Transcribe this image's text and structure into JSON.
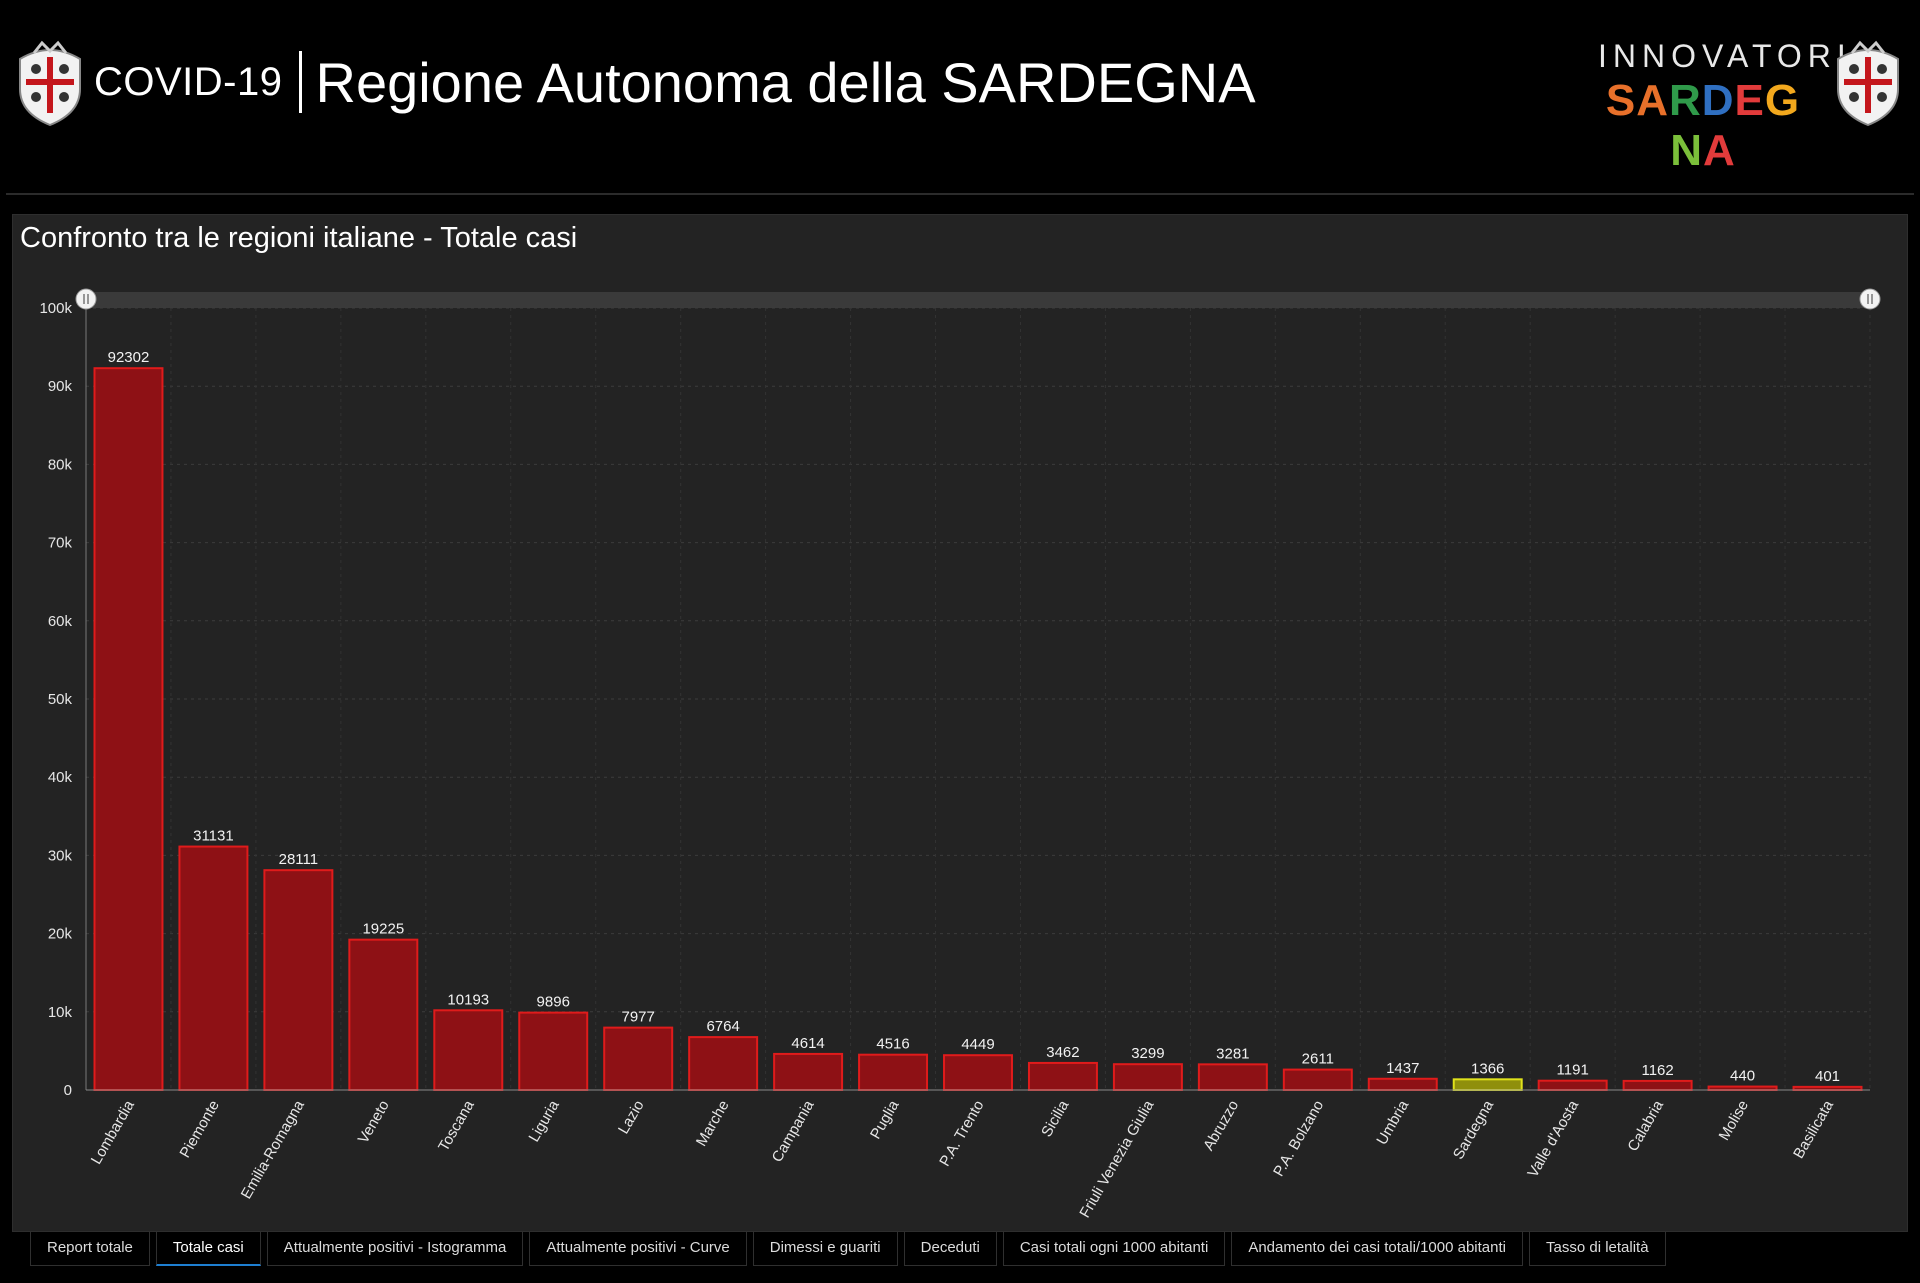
{
  "header": {
    "title_small": "COVID-19",
    "title_big": "Regione Autonoma della SARDEGNA",
    "brand_top": "INNOVATORI",
    "brand_bottom": "SARDEGNA",
    "brand_colors": [
      "#e8702a",
      "#e8702a",
      "#2f9a4a",
      "#2f6fc1",
      "#e23b3b",
      "#f2a81d",
      "#7bbf3a",
      "#e23b3b"
    ]
  },
  "panel": {
    "title": "Confronto tra le regioni italiane - Totale casi"
  },
  "chart_data": {
    "type": "bar",
    "categories": [
      "Lombardia",
      "Piemonte",
      "Emilia-Romagna",
      "Veneto",
      "Toscana",
      "Liguria",
      "Lazio",
      "Marche",
      "Campania",
      "Puglia",
      "P.A. Trento",
      "Sicilia",
      "Friuli Venezia Giulia",
      "Abruzzo",
      "P.A. Bolzano",
      "Umbria",
      "Sardegna",
      "Valle d'Aosta",
      "Calabria",
      "Molise",
      "Basilicata"
    ],
    "values": [
      92302,
      31131,
      28111,
      19225,
      10193,
      9896,
      7977,
      6764,
      4614,
      4516,
      4449,
      3462,
      3299,
      3281,
      2611,
      1437,
      1366,
      1191,
      1162,
      440,
      401
    ],
    "highlight": "Sardegna",
    "y_ticks": [
      "0",
      "10k",
      "20k",
      "30k",
      "40k",
      "50k",
      "60k",
      "70k",
      "80k",
      "90k",
      "100k"
    ],
    "ylim": [
      0,
      100000
    ],
    "grid": true,
    "colors": {
      "bar": "#8e1115",
      "bar_edge": "#e01b1b",
      "highlight": "#8f8f0c",
      "highlight_edge": "#e0e21b"
    }
  },
  "tabs": [
    {
      "label": "Report totale",
      "active": false
    },
    {
      "label": "Totale casi",
      "active": true
    },
    {
      "label": "Attualmente positivi - Istogramma",
      "active": false
    },
    {
      "label": "Attualmente positivi - Curve",
      "active": false
    },
    {
      "label": "Dimessi e guariti",
      "active": false
    },
    {
      "label": "Deceduti",
      "active": false
    },
    {
      "label": "Casi totali ogni 1000 abitanti",
      "active": false
    },
    {
      "label": "Andamento dei casi totali/1000 abitanti",
      "active": false
    },
    {
      "label": "Tasso di letalità",
      "active": false
    }
  ]
}
